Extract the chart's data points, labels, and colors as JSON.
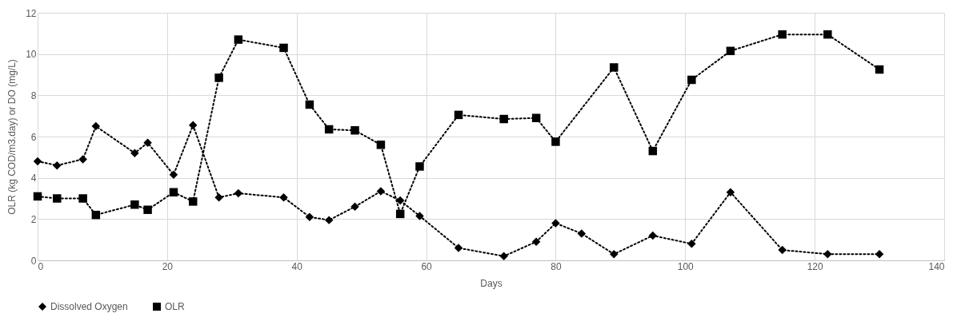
{
  "chart_data": {
    "type": "line",
    "xlabel": "Days",
    "ylabel": "OLR (kg COD/m3.day) or DO (mg/L)",
    "xlim": [
      0,
      140
    ],
    "xticks": [
      0,
      20,
      40,
      60,
      80,
      100,
      120,
      140
    ],
    "ylim": [
      0,
      12
    ],
    "yticks": [
      0,
      2,
      4,
      6,
      8,
      10,
      12
    ],
    "grid": true,
    "legend": "bottom",
    "line_style": "dotted",
    "series": [
      {
        "name": "Dissolved Oxygen",
        "color": "#000000",
        "marker": "diamond",
        "x": [
          0,
          3,
          7,
          9,
          15,
          17,
          21,
          24,
          28,
          31,
          38,
          42,
          45,
          49,
          53,
          56,
          59,
          65,
          72,
          77,
          80,
          84,
          89,
          95,
          101,
          107,
          115,
          122,
          130
        ],
        "values": [
          4.8,
          4.6,
          4.9,
          6.5,
          5.2,
          5.7,
          4.15,
          6.55,
          3.05,
          3.25,
          3.05,
          2.1,
          1.95,
          2.6,
          3.35,
          2.9,
          2.15,
          0.6,
          0.2,
          0.9,
          1.8,
          1.3,
          0.3,
          1.2,
          0.8,
          3.3,
          0.5,
          0.3,
          0.3
        ]
      },
      {
        "name": "OLR",
        "color": "#000000",
        "marker": "square",
        "x": [
          0,
          3,
          7,
          9,
          15,
          17,
          21,
          24,
          28,
          31,
          38,
          42,
          45,
          49,
          53,
          56,
          59,
          65,
          72,
          77,
          80,
          89,
          95,
          101,
          107,
          115,
          122,
          130
        ],
        "values": [
          3.1,
          3.0,
          3.0,
          2.2,
          2.7,
          2.45,
          3.3,
          2.85,
          8.85,
          10.7,
          10.3,
          7.55,
          6.35,
          6.3,
          5.6,
          2.25,
          4.55,
          7.05,
          6.85,
          6.9,
          5.75,
          9.35,
          5.3,
          8.75,
          10.15,
          10.95,
          10.95,
          9.25
        ]
      }
    ]
  }
}
